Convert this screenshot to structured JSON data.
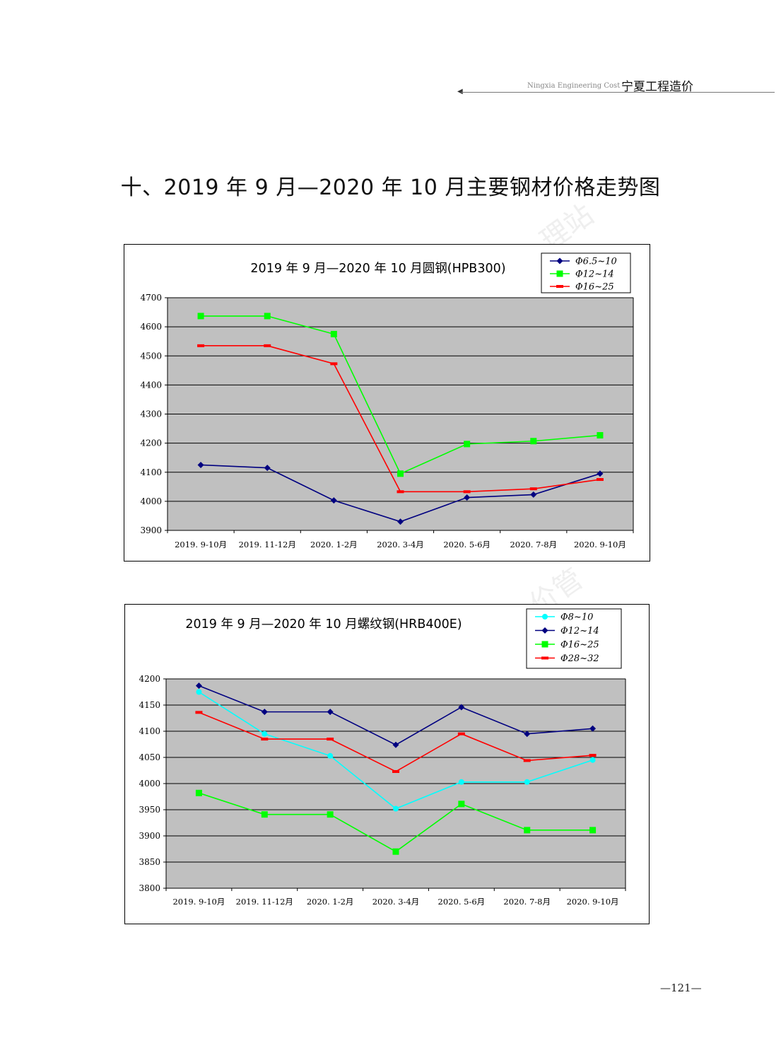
{
  "header": {
    "en": "Ningxia Engineering Cost",
    "cn": "宁夏工程造价"
  },
  "page_title": "十、2019 年 9 月—2020 年 10 月主要钢材价格走势图",
  "page_number": "—121—",
  "watermarks": [
    "理站",
    "价管"
  ],
  "chart_data": [
    {
      "type": "line",
      "title": "2019 年 9 月—2020 年 10 月圆钢(HPB300)",
      "xlabel": "",
      "ylabel": "",
      "categories": [
        "2019. 9-10月",
        "2019. 11-12月",
        "2020. 1-2月",
        "2020. 3-4月",
        "2020. 5-6月",
        "2020. 7-8月",
        "2020. 9-10月"
      ],
      "ylim": [
        3900,
        4700
      ],
      "yticks": [
        3900,
        4000,
        4100,
        4200,
        4300,
        4400,
        4500,
        4600,
        4700
      ],
      "grid": true,
      "legend_position": "top-right",
      "plot_background": "#c0c0c0",
      "series": [
        {
          "name": "Φ6.5~10",
          "color": "#000080",
          "marker": "diamond",
          "values": [
            4125,
            4115,
            4003,
            3930,
            4013,
            4023,
            4095
          ]
        },
        {
          "name": "Φ12~14",
          "color": "#00ff00",
          "marker": "square",
          "values": [
            4637,
            4637,
            4575,
            4095,
            4197,
            4207,
            4227
          ]
        },
        {
          "name": "Φ16~25",
          "color": "#ff0000",
          "marker": "dash",
          "values": [
            4535,
            4535,
            4473,
            4033,
            4033,
            4043,
            4075
          ]
        }
      ]
    },
    {
      "type": "line",
      "title": "2019 年 9 月—2020 年 10 月螺纹钢(HRB400E)",
      "xlabel": "",
      "ylabel": "",
      "categories": [
        "2019. 9-10月",
        "2019. 11-12月",
        "2020. 1-2月",
        "2020. 3-4月",
        "2020. 5-6月",
        "2020. 7-8月",
        "2020. 9-10月"
      ],
      "ylim": [
        3800,
        4200
      ],
      "yticks": [
        3800,
        3850,
        3900,
        3950,
        4000,
        4050,
        4100,
        4150,
        4200
      ],
      "grid": true,
      "legend_position": "top-right",
      "plot_background": "#c0c0c0",
      "series": [
        {
          "name": "Φ8~10",
          "color": "#00ffff",
          "marker": "circle",
          "values": [
            4175,
            4095,
            4053,
            3952,
            4003,
            4003,
            4045
          ]
        },
        {
          "name": "Φ12~14",
          "color": "#000080",
          "marker": "diamond",
          "values": [
            4187,
            4137,
            4137,
            4074,
            4146,
            4095,
            4105
          ]
        },
        {
          "name": "Φ16~25",
          "color": "#00ff00",
          "marker": "square",
          "values": [
            3982,
            3941,
            3941,
            3870,
            3961,
            3911,
            3911
          ]
        },
        {
          "name": "Φ28~32",
          "color": "#ff0000",
          "marker": "dash",
          "values": [
            4136,
            4085,
            4085,
            4023,
            4095,
            4044,
            4054
          ]
        }
      ]
    }
  ]
}
